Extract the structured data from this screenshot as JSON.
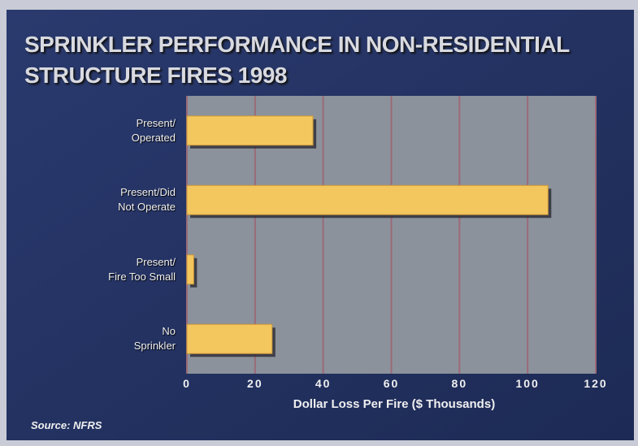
{
  "chart_data": {
    "type": "bar",
    "orientation": "horizontal",
    "title": "SPRINKLER PERFORMANCE IN NON-RESIDENTIAL\nSTRUCTURE FIRES 1998",
    "categories": [
      "Present/\nOperated",
      "Present/Did\nNot Operate",
      "Present/\nFire Too Small",
      "No\nSprinkler"
    ],
    "values": [
      37,
      106,
      2,
      25
    ],
    "color": "#f4c65e",
    "xlabel": "Dollar Loss Per Fire ($ Thousands)",
    "xlim": [
      0,
      120
    ],
    "xticks": [
      0,
      20,
      40,
      60,
      80,
      100,
      120
    ],
    "grid": true,
    "source": "Source: NFRS"
  }
}
